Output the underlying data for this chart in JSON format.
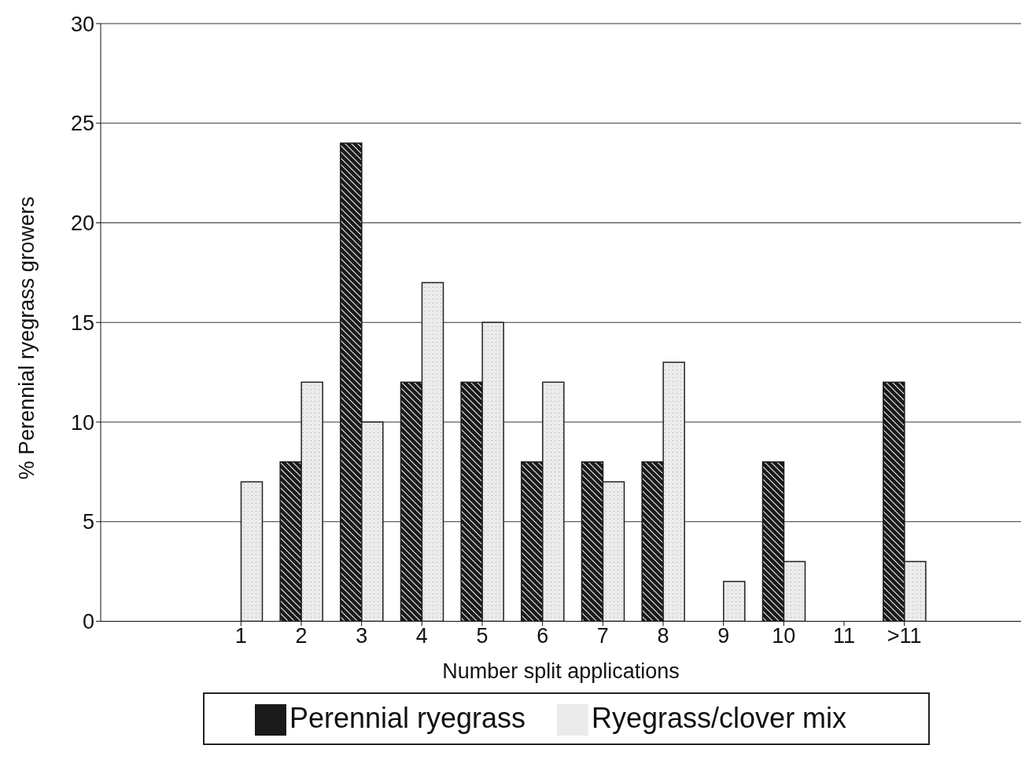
{
  "chart_data": {
    "type": "bar",
    "xlabel": "Number split applications",
    "ylabel": "% Perennial ryegrass growers",
    "categories": [
      "1",
      "2",
      "3",
      "4",
      "5",
      "6",
      "7",
      "8",
      "9",
      "10",
      "11",
      ">11"
    ],
    "series": [
      {
        "name": "Perennial ryegrass",
        "color": "#1a1a1a",
        "values": [
          0,
          8,
          24,
          12,
          12,
          8,
          8,
          8,
          0,
          8,
          0,
          12
        ]
      },
      {
        "name": "Ryegrass/clover mix",
        "color": "#ebebeb",
        "values": [
          7,
          12,
          10,
          17,
          15,
          12,
          7,
          13,
          2,
          3,
          0,
          3
        ]
      }
    ],
    "ylim": [
      0,
      30
    ],
    "yticks": [
      0,
      5,
      10,
      15,
      20,
      25,
      30
    ],
    "grid": "y",
    "legend": "bottom"
  }
}
